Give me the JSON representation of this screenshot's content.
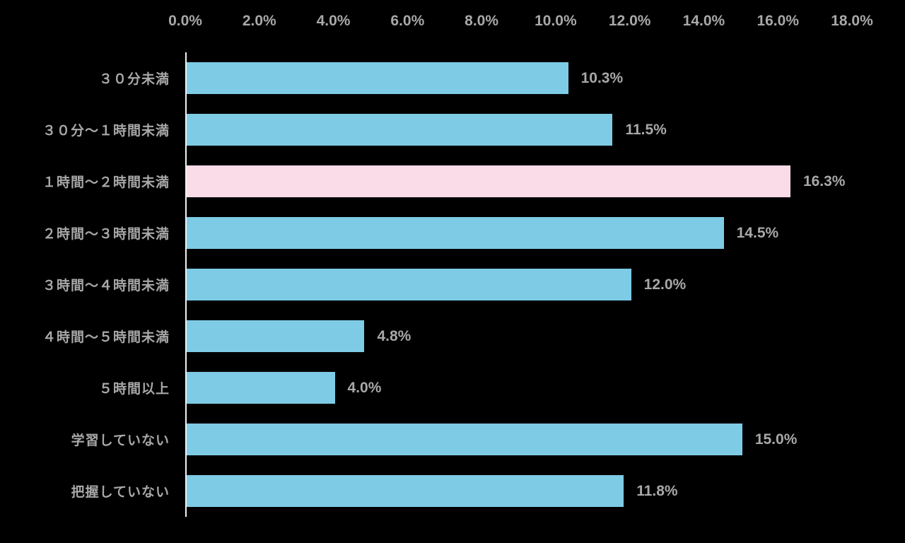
{
  "chart_data": {
    "type": "bar",
    "orientation": "horizontal",
    "title": "",
    "xlabel": "",
    "ylabel": "",
    "xlim": [
      0,
      18
    ],
    "grid": false,
    "x_ticks": [
      "0.0%",
      "2.0%",
      "4.0%",
      "6.0%",
      "8.0%",
      "10.0%",
      "12.0%",
      "14.0%",
      "16.0%",
      "18.0%"
    ],
    "x_tick_values": [
      0,
      2,
      4,
      6,
      8,
      10,
      12,
      14,
      16,
      18
    ],
    "categories": [
      "３０分未満",
      "３０分～１時間未満",
      "１時間～２時間未満",
      "２時間～３時間未満",
      "３時間～４時間未満",
      "４時間～５時間未満",
      "５時間以上",
      "学習していない",
      "把握していない"
    ],
    "values": [
      10.3,
      11.5,
      16.3,
      14.5,
      12.0,
      4.8,
      4.0,
      15.0,
      11.8
    ],
    "value_labels": [
      "10.3%",
      "11.5%",
      "16.3%",
      "14.5%",
      "12.0%",
      "4.8%",
      "4.0%",
      "15.0%",
      "11.8%"
    ],
    "highlight_index": 2,
    "colors": {
      "bar": "#7ecbe6",
      "highlight_bar": "#fadce9",
      "background": "#000000",
      "text": "#a8a8a8",
      "axis_line": "#f2f2f2"
    },
    "legend": null,
    "legend_position": "none"
  }
}
